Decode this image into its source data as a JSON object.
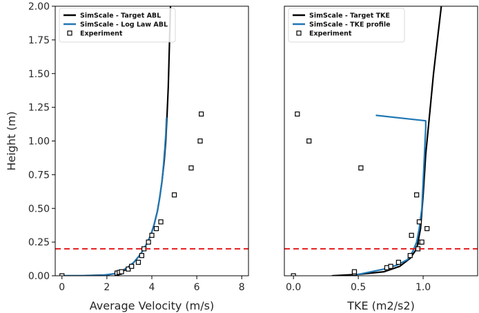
{
  "chart_data": [
    {
      "type": "line",
      "xlabel": "Average Velocity (m/s)",
      "ylabel": "Height (m)",
      "xlim": [
        -0.3,
        8.3
      ],
      "ylim": [
        0,
        2.0
      ],
      "xticks": [
        0,
        2,
        4,
        6,
        8
      ],
      "yticks": [
        0.0,
        0.25,
        0.5,
        0.75,
        1.0,
        1.25,
        1.5,
        1.75,
        2.0
      ],
      "xtick_labels": [
        "0",
        "2",
        "4",
        "6",
        "8"
      ],
      "ytick_labels": [
        "0.00",
        "0.25",
        "0.50",
        "0.75",
        "1.00",
        "1.25",
        "1.50",
        "1.75",
        "2.00"
      ],
      "grid": false,
      "legend_position": "top-left",
      "reference_line": {
        "y": 0.2,
        "color": "#e41a1c",
        "style": "dashed"
      },
      "series": [
        {
          "name": "SimScale - Target ABL",
          "kind": "line",
          "color": "#000000",
          "x": [
            0.0,
            1.0,
            2.0,
            2.5,
            2.9,
            3.2,
            3.5,
            3.75,
            3.95,
            4.1,
            4.25,
            4.35,
            4.45,
            4.55,
            4.62,
            4.68,
            4.73,
            4.78,
            4.83
          ],
          "y": [
            0.0,
            0.001,
            0.006,
            0.02,
            0.05,
            0.1,
            0.16,
            0.23,
            0.3,
            0.38,
            0.48,
            0.58,
            0.7,
            0.85,
            1.0,
            1.2,
            1.4,
            1.7,
            2.0
          ]
        },
        {
          "name": "SimScale - Log Law ABL",
          "kind": "line",
          "color": "#1f77b4",
          "x": [
            0.0,
            1.0,
            1.8,
            2.3,
            2.6,
            2.9,
            3.2,
            3.5,
            3.75,
            3.95,
            4.1,
            4.25,
            4.35,
            4.45,
            4.52,
            4.58,
            4.62,
            4.65
          ],
          "y": [
            0.0,
            0.001,
            0.004,
            0.015,
            0.03,
            0.06,
            0.1,
            0.16,
            0.23,
            0.3,
            0.38,
            0.48,
            0.58,
            0.7,
            0.82,
            0.95,
            1.05,
            1.17
          ]
        },
        {
          "name": "Experiment",
          "kind": "marker",
          "color": "#000000",
          "x": [
            0.0,
            2.45,
            2.55,
            2.65,
            2.95,
            3.1,
            3.4,
            3.55,
            3.65,
            3.85,
            4.0,
            4.2,
            4.4,
            5.0,
            5.75,
            6.15,
            6.2
          ],
          "y": [
            0.0,
            0.02,
            0.025,
            0.03,
            0.05,
            0.07,
            0.1,
            0.15,
            0.2,
            0.25,
            0.3,
            0.35,
            0.4,
            0.6,
            0.8,
            1.0,
            1.2
          ]
        }
      ]
    },
    {
      "type": "line",
      "xlabel": "TKE (m2/s2)",
      "ylabel": "",
      "xlim": [
        -0.07,
        1.42
      ],
      "ylim": [
        0,
        2.0
      ],
      "xticks": [
        0.0,
        0.5,
        1.0
      ],
      "yticks": [],
      "xtick_labels": [
        "0.0",
        "0.5",
        "1.0"
      ],
      "ytick_labels": [],
      "grid": false,
      "legend_position": "top-left",
      "reference_line": {
        "y": 0.2,
        "color": "#e41a1c",
        "style": "dashed"
      },
      "series": [
        {
          "name": "SimScale - Target TKE",
          "kind": "line",
          "color": "#000000",
          "x": [
            0.3,
            0.5,
            0.7,
            0.82,
            0.9,
            0.95,
            0.98,
            1.0,
            1.02,
            1.05,
            1.08,
            1.11,
            1.14
          ],
          "y": [
            0.0,
            0.01,
            0.03,
            0.07,
            0.13,
            0.2,
            0.35,
            0.6,
            0.9,
            1.2,
            1.5,
            1.75,
            2.0
          ]
        },
        {
          "name": "SimScale - TKE profile",
          "kind": "line",
          "color": "#1f77b4",
          "x": [
            0.45,
            0.55,
            0.7,
            0.8,
            0.88,
            0.92,
            0.95,
            0.97,
            0.99,
            1.0,
            1.01,
            1.02,
            1.02,
            0.64
          ],
          "y": [
            0.0,
            0.02,
            0.05,
            0.08,
            0.12,
            0.18,
            0.25,
            0.35,
            0.5,
            0.7,
            0.9,
            1.1,
            1.15,
            1.19
          ]
        },
        {
          "name": "Experiment",
          "kind": "marker",
          "color": "#000000",
          "x": [
            0.0,
            0.47,
            0.47,
            0.72,
            0.75,
            0.81,
            0.9,
            0.91,
            0.95,
            0.96,
            0.97,
            0.98,
            0.99,
            1.03,
            0.03,
            0.12,
            0.52
          ],
          "y": [
            0.0,
            0.02,
            0.03,
            0.06,
            0.07,
            0.1,
            0.15,
            0.3,
            0.6,
            0.2,
            0.4,
            0.25,
            0.25,
            0.35,
            1.2,
            1.0,
            0.8
          ]
        }
      ]
    }
  ]
}
